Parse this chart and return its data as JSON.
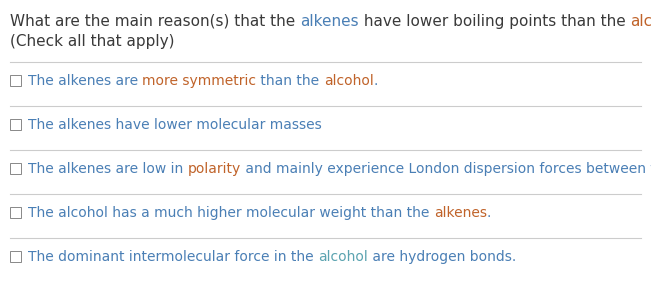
{
  "bg_color": "#ffffff",
  "text_color_dark": "#3a3a3a",
  "text_color_blue": "#4a7fb5",
  "text_color_orange": "#c0632a",
  "text_color_teal": "#5ba3b0",
  "divider_color": "#cccccc",
  "checkbox_color": "#888888",
  "question_parts": [
    {
      "text": "What are the main reason(s) that the ",
      "color": "#3a3a3a"
    },
    {
      "text": "alkenes",
      "color": "#4a7fb5"
    },
    {
      "text": " have lower boiling points than the ",
      "color": "#3a3a3a"
    },
    {
      "text": "alcohol",
      "color": "#c0632a"
    },
    {
      "text": "?",
      "color": "#3a3a3a"
    }
  ],
  "question_line2": "(Check all that apply)",
  "options": [
    {
      "parts": [
        {
          "text": "The alkenes are ",
          "color": "#4a7fb5"
        },
        {
          "text": "more symmetric",
          "color": "#c0632a"
        },
        {
          "text": " than the ",
          "color": "#4a7fb5"
        },
        {
          "text": "alcohol",
          "color": "#c0632a"
        },
        {
          "text": ".",
          "color": "#4a7fb5"
        }
      ]
    },
    {
      "parts": [
        {
          "text": "The alkenes have lower molecular masses",
          "color": "#4a7fb5"
        }
      ]
    },
    {
      "parts": [
        {
          "text": "The alkenes are low in ",
          "color": "#4a7fb5"
        },
        {
          "text": "polarity",
          "color": "#c0632a"
        },
        {
          "text": " and mainly experience London dispersion forces between them.",
          "color": "#4a7fb5"
        }
      ]
    },
    {
      "parts": [
        {
          "text": "The alcohol has a much higher molecular weight than the ",
          "color": "#4a7fb5"
        },
        {
          "text": "alkenes",
          "color": "#c0632a"
        },
        {
          "text": ".",
          "color": "#4a7fb5"
        }
      ]
    },
    {
      "parts": [
        {
          "text": "The dominant intermolecular force in the ",
          "color": "#4a7fb5"
        },
        {
          "text": "alcohol",
          "color": "#5ba3b0"
        },
        {
          "text": " are hydrogen bonds.",
          "color": "#4a7fb5"
        }
      ]
    }
  ],
  "question_fontsize": 11.0,
  "option_fontsize": 10.0,
  "fig_width": 6.51,
  "fig_height": 2.9,
  "dpi": 100
}
